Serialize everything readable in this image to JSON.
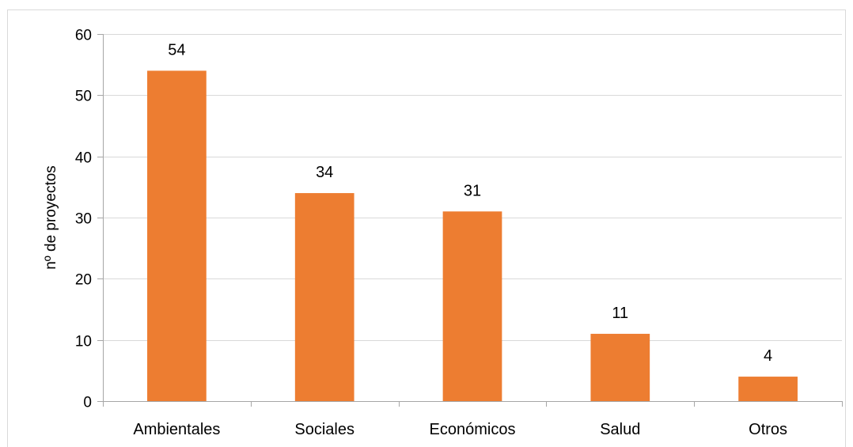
{
  "chart_data": {
    "type": "bar",
    "title": "",
    "xlabel": "",
    "ylabel": "nº de proyectos",
    "categories": [
      "Ambientales",
      "Sociales",
      "Económicos",
      "Salud",
      "Otros"
    ],
    "values": [
      54,
      34,
      31,
      11,
      4
    ],
    "data_labels": [
      "54",
      "34",
      "31",
      "11",
      "4"
    ],
    "ylim": [
      0,
      60
    ],
    "yticks": [
      0,
      10,
      20,
      30,
      40,
      50,
      60
    ],
    "ytick_labels": [
      "0",
      "10",
      "20",
      "30",
      "40",
      "50",
      "60"
    ],
    "grid": true,
    "legend": "none",
    "bar_color": "#ed7d31",
    "grid_color": "#d9d9d9",
    "axis_color": "#a6a6a6"
  }
}
